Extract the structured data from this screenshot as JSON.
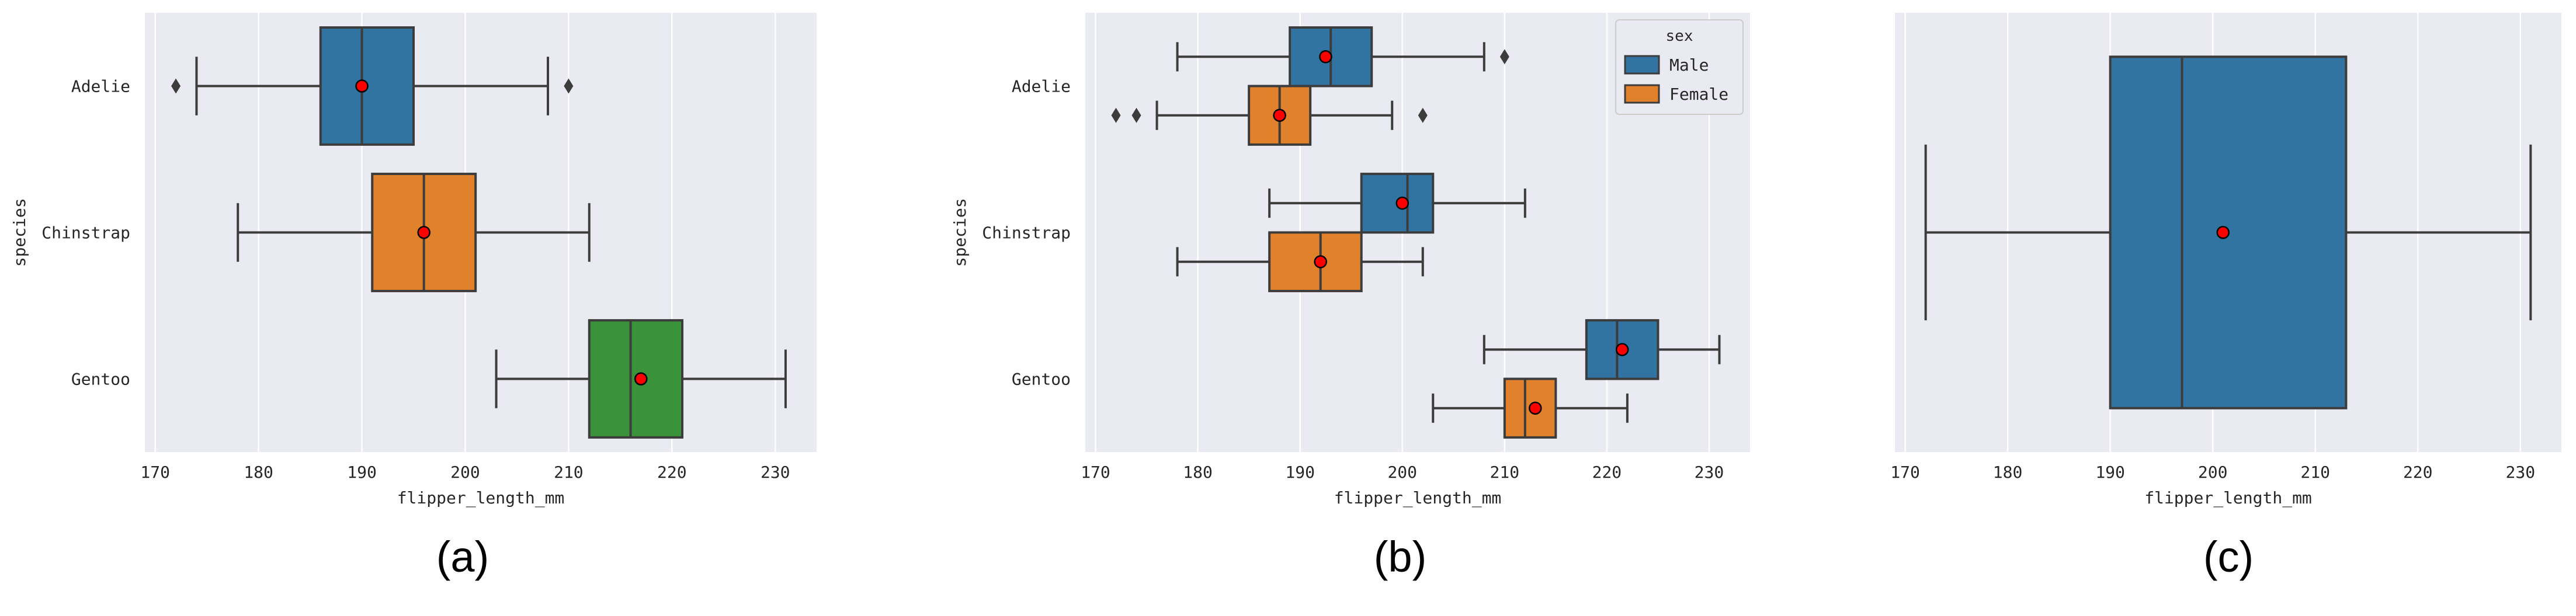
{
  "chart_data": [
    {
      "type": "box",
      "caption": "(a)",
      "orientation": "horizontal",
      "xlabel": "flipper_length_mm",
      "ylabel": "species",
      "xlim": [
        169,
        234
      ],
      "x_ticks": [
        170,
        180,
        190,
        200,
        210,
        220,
        230
      ],
      "grid": true,
      "categories": [
        "Adelie",
        "Chinstrap",
        "Gentoo"
      ],
      "boxes": [
        {
          "category": "Adelie",
          "color": "#3274a1",
          "whisker_low": 174,
          "q1": 186,
          "median": 190,
          "q3": 195,
          "whisker_high": 208,
          "mean": 190,
          "outliers": [
            172,
            210
          ]
        },
        {
          "category": "Chinstrap",
          "color": "#e1812c",
          "whisker_low": 178,
          "q1": 191,
          "median": 196,
          "q3": 201,
          "whisker_high": 212,
          "mean": 196,
          "outliers": []
        },
        {
          "category": "Gentoo",
          "color": "#3a923a",
          "whisker_low": 203,
          "q1": 212,
          "median": 216,
          "q3": 221,
          "whisker_high": 231,
          "mean": 217,
          "outliers": []
        }
      ]
    },
    {
      "type": "box",
      "caption": "(b)",
      "orientation": "horizontal",
      "xlabel": "flipper_length_mm",
      "ylabel": "species",
      "xlim": [
        169,
        234
      ],
      "x_ticks": [
        170,
        180,
        190,
        200,
        210,
        220,
        230
      ],
      "grid": true,
      "categories": [
        "Adelie",
        "Chinstrap",
        "Gentoo"
      ],
      "legend": {
        "title": "sex",
        "position": "upper-right",
        "entries": [
          {
            "label": "Male",
            "color": "#3274a1"
          },
          {
            "label": "Female",
            "color": "#e1812c"
          }
        ]
      },
      "boxes": [
        {
          "category": "Adelie",
          "group": "Male",
          "color": "#3274a1",
          "whisker_low": 178,
          "q1": 189,
          "median": 193,
          "q3": 197,
          "whisker_high": 208,
          "mean": 192.5,
          "outliers": [
            210
          ]
        },
        {
          "category": "Adelie",
          "group": "Female",
          "color": "#e1812c",
          "whisker_low": 176,
          "q1": 185,
          "median": 188,
          "q3": 191,
          "whisker_high": 199,
          "mean": 188,
          "outliers": [
            172,
            174,
            202
          ]
        },
        {
          "category": "Chinstrap",
          "group": "Male",
          "color": "#3274a1",
          "whisker_low": 187,
          "q1": 196,
          "median": 200.5,
          "q3": 203,
          "whisker_high": 212,
          "mean": 200,
          "outliers": []
        },
        {
          "category": "Chinstrap",
          "group": "Female",
          "color": "#e1812c",
          "whisker_low": 178,
          "q1": 187,
          "median": 192,
          "q3": 196,
          "whisker_high": 202,
          "mean": 192,
          "outliers": []
        },
        {
          "category": "Gentoo",
          "group": "Male",
          "color": "#3274a1",
          "whisker_low": 208,
          "q1": 218,
          "median": 221,
          "q3": 225,
          "whisker_high": 231,
          "mean": 221.5,
          "outliers": []
        },
        {
          "category": "Gentoo",
          "group": "Female",
          "color": "#e1812c",
          "whisker_low": 203,
          "q1": 210,
          "median": 212,
          "q3": 215,
          "whisker_high": 222,
          "mean": 213,
          "outliers": []
        }
      ]
    },
    {
      "type": "box",
      "caption": "(c)",
      "orientation": "horizontal",
      "xlabel": "flipper_length_mm",
      "ylabel": "",
      "xlim": [
        169,
        234
      ],
      "x_ticks": [
        170,
        180,
        190,
        200,
        210,
        220,
        230
      ],
      "grid": true,
      "categories": [
        ""
      ],
      "boxes": [
        {
          "category": "",
          "color": "#3274a1",
          "whisker_low": 172,
          "q1": 190,
          "median": 197,
          "q3": 213,
          "whisker_high": 231,
          "mean": 201,
          "outliers": []
        }
      ]
    }
  ]
}
